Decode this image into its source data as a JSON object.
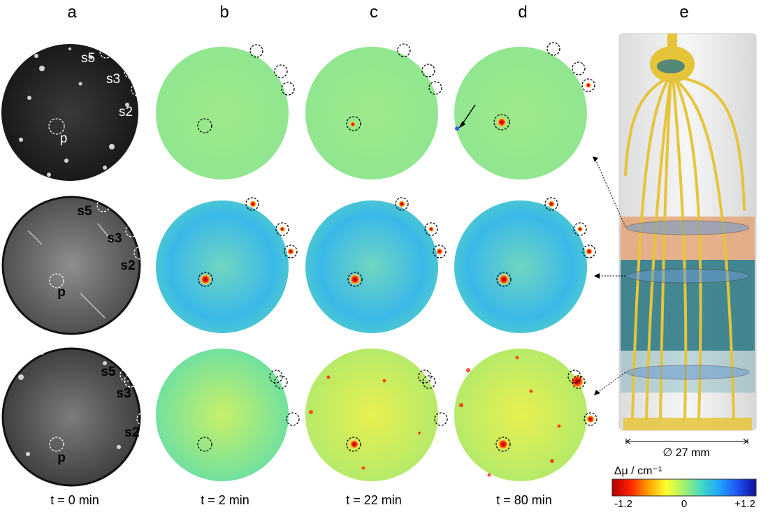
{
  "panels": {
    "a": "a",
    "b": "b",
    "c": "c",
    "d": "d",
    "e": "e"
  },
  "times": {
    "t0": "t = 0 min",
    "t2": "t = 2 min",
    "t22": "t = 22 min",
    "t80": "t = 80 min"
  },
  "sample_labels": {
    "s5": "s5",
    "s3": "s3",
    "s2": "s2",
    "p": "p"
  },
  "diameter_label": "∅ 27 mm",
  "colorbar": {
    "title": "Δμ / cm⁻¹",
    "min": "-1.2",
    "mid": "0",
    "max": "+1.2",
    "stops": [
      "#b00000",
      "#ff2000",
      "#ffa000",
      "#ffff30",
      "#a0f070",
      "#40d8c8",
      "#20a0ff",
      "#2050f0",
      "#10109a"
    ]
  },
  "colors": {
    "root": "#e6c43a",
    "soil": "#2f7b86",
    "band": "#e2a67a",
    "field": "#a8f07a"
  }
}
